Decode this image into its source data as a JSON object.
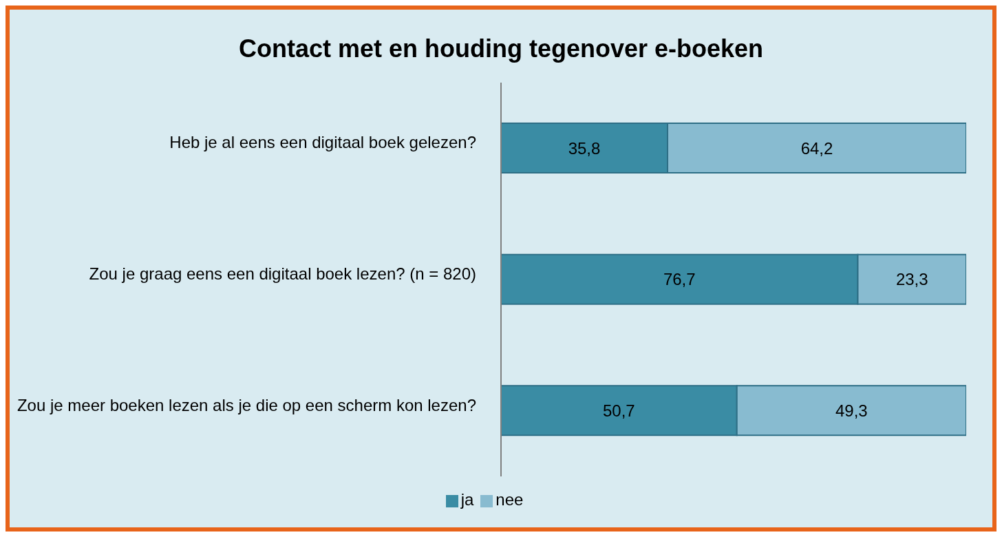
{
  "chart_data": {
    "type": "bar",
    "title": "Contact met en houding tegenover e-boeken",
    "orientation": "horizontal",
    "stacked": true,
    "categories": [
      "Heb je al eens een digitaal boek gelezen?",
      "Zou je graag eens een digitaal boek lezen? (n = 820)",
      "Zou je meer boeken lezen als je die op een scherm kon lezen?"
    ],
    "series": [
      {
        "name": "ja",
        "color": "#3a8ca4",
        "values": [
          35.8,
          76.7,
          50.7
        ],
        "value_labels": [
          "35,8",
          "76,7",
          "50,7"
        ]
      },
      {
        "name": "nee",
        "color": "#88bbd0",
        "values": [
          64.2,
          23.3,
          49.3
        ],
        "value_labels": [
          "64,2",
          "23,3",
          "49,3"
        ]
      }
    ],
    "xlim": [
      0,
      100
    ],
    "tick_labels": "y",
    "grid": false,
    "legend": "bottom"
  }
}
